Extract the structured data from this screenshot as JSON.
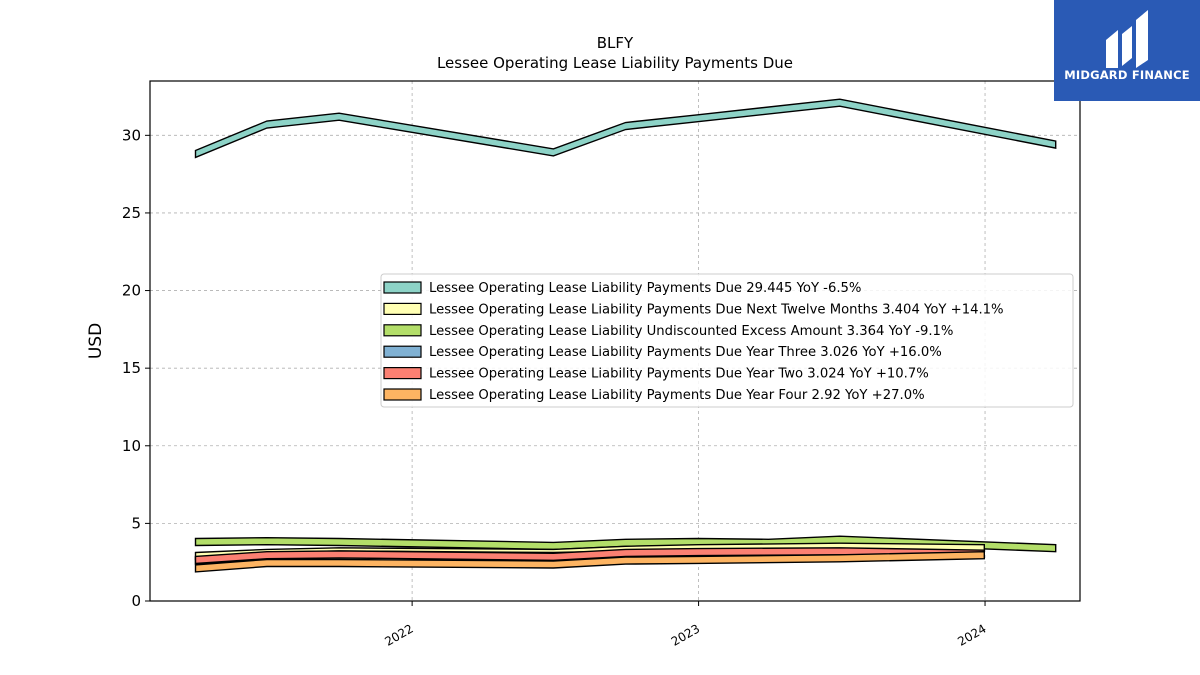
{
  "brand": {
    "name": "MIDGARD FINANCE",
    "color": "#2a5ab5"
  },
  "chart_data": {
    "type": "area",
    "title": "BLFY",
    "subtitle": "Lessee Operating Lease Liability Payments Due",
    "ylabel": "USD",
    "xlabel": "",
    "ylim": [
      0,
      33.5
    ],
    "yticks": [
      0,
      5,
      10,
      15,
      20,
      25,
      30
    ],
    "xlim": [
      "2021-02-01",
      "2024-05-01"
    ],
    "xticks": [
      {
        "date": "2022-01-01",
        "label": "2022"
      },
      {
        "date": "2023-01-01",
        "label": "2023"
      },
      {
        "date": "2024-01-01",
        "label": "2024"
      }
    ],
    "grid": true,
    "legend_position": "center-right",
    "band_width_usd": 0.45,
    "series": [
      {
        "name": "Lessee Operating Lease Liability Payments Due",
        "legend": "Lessee Operating Lease Liability Payments Due  29.445 YoY -6.5%",
        "color": "#8dd3c7",
        "dates": [
          "2021-03-31",
          "2021-06-30",
          "2021-09-30",
          "2022-06-30",
          "2022-09-30",
          "2022-12-31",
          "2023-06-30",
          "2024-03-31"
        ],
        "values": [
          28.8,
          30.7,
          31.2,
          28.9,
          30.6,
          31.1,
          32.1,
          29.4
        ]
      },
      {
        "name": "Lessee Operating Lease Liability Payments Due Next Twelve Months",
        "legend": "Lessee Operating Lease Liability Payments Due Next Twelve Months  3.404 YoY +14.1%",
        "color": "#ffffb3",
        "dates": [
          "2021-03-31",
          "2021-06-30",
          "2021-09-30",
          "2022-06-30",
          "2022-09-30",
          "2022-12-31",
          "2023-06-30",
          "2023-12-31"
        ],
        "values": [
          2.9,
          3.1,
          3.2,
          3.1,
          3.3,
          3.4,
          3.5,
          3.4
        ]
      },
      {
        "name": "Lessee Operating Lease Liability Undiscounted Excess Amount",
        "legend": "Lessee Operating Lease Liability Undiscounted Excess Amount  3.364 YoY -9.1%",
        "color": "#b3de69",
        "dates": [
          "2021-03-31",
          "2021-06-30",
          "2021-09-30",
          "2022-06-30",
          "2022-09-30",
          "2022-12-31",
          "2023-03-31",
          "2023-06-30",
          "2024-03-31"
        ],
        "values": [
          3.8,
          3.85,
          3.8,
          3.55,
          3.75,
          3.8,
          3.75,
          3.95,
          3.4
        ]
      },
      {
        "name": "Lessee Operating Lease Liability Payments Due Year Three",
        "legend": "Lessee Operating Lease Liability Payments Due Year Three  3.026 YoY +16.0%",
        "color": "#80b1d3",
        "dates": [
          "2021-03-31",
          "2021-06-30",
          "2021-09-30",
          "2022-06-30",
          "2022-09-30",
          "2022-12-31",
          "2023-06-30",
          "2023-12-31"
        ],
        "values": [
          2.6,
          2.9,
          3.0,
          2.9,
          3.0,
          3.0,
          3.1,
          3.0
        ]
      },
      {
        "name": "Lessee Operating Lease Liability Payments Due Year Two",
        "legend": "Lessee Operating Lease Liability Payments Due Year Two  3.024 YoY +10.7%",
        "color": "#fb8072",
        "dates": [
          "2021-03-31",
          "2021-06-30",
          "2021-09-30",
          "2022-06-30",
          "2022-09-30",
          "2022-12-31",
          "2023-06-30",
          "2023-12-31"
        ],
        "values": [
          2.65,
          2.95,
          3.0,
          2.85,
          3.1,
          3.15,
          3.2,
          3.05
        ]
      },
      {
        "name": "Lessee Operating Lease Liability Payments Due Year Four",
        "legend": "Lessee Operating Lease Liability Payments Due Year Four  2.92 YoY +27.0%",
        "color": "#fdb462",
        "dates": [
          "2021-03-31",
          "2021-06-30",
          "2021-09-30",
          "2022-06-30",
          "2022-09-30",
          "2022-12-31",
          "2023-06-30",
          "2023-12-31"
        ],
        "values": [
          2.1,
          2.45,
          2.45,
          2.35,
          2.6,
          2.65,
          2.75,
          2.95
        ]
      }
    ]
  }
}
